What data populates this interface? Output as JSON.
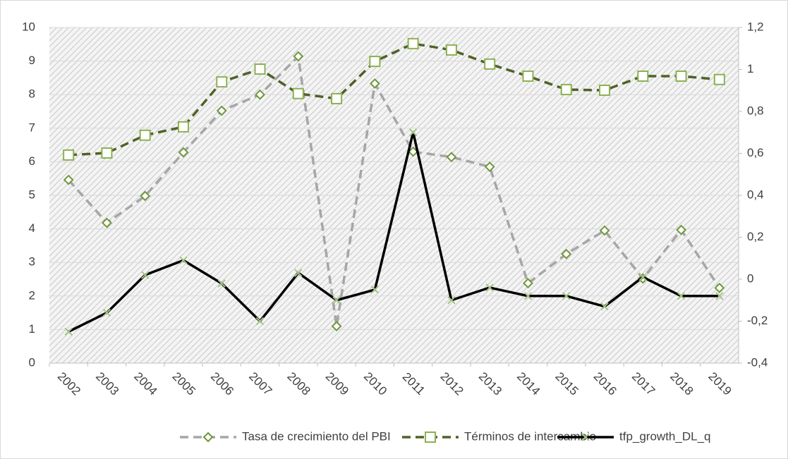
{
  "chart_data": {
    "type": "line",
    "categories": [
      "2002",
      "2003",
      "2004",
      "2005",
      "2006",
      "2007",
      "2008",
      "2009",
      "2010",
      "2011",
      "2012",
      "2013",
      "2014",
      "2015",
      "2016",
      "2017",
      "2018",
      "2019"
    ],
    "ylim": [
      0,
      10
    ],
    "yticks": [
      0,
      1,
      2,
      3,
      4,
      5,
      6,
      7,
      8,
      9,
      10
    ],
    "y2lim": [
      -0.4,
      1.2
    ],
    "y2ticks": [
      {
        "value": -0.4,
        "label": "-0,4"
      },
      {
        "value": -0.2,
        "label": "-0,2"
      },
      0,
      {
        "value": 0.2,
        "label": "0,2"
      },
      {
        "value": 0.4,
        "label": "0,4"
      },
      {
        "value": 0.6,
        "label": "0,6"
      },
      {
        "value": 0.8,
        "label": "0,8"
      },
      1,
      {
        "value": 1.2,
        "label": "1,2"
      }
    ],
    "grid": true,
    "legend": "bottom",
    "series": [
      {
        "name": "Tasa de crecimiento del PBI",
        "color": "#a6a6a6",
        "dashed": true,
        "marker": "diamond",
        "marker_color": "#70963c",
        "values": [
          5.46,
          4.18,
          4.98,
          6.28,
          7.52,
          8.0,
          9.14,
          1.1,
          8.33,
          6.3,
          6.14,
          5.85,
          2.38,
          3.25,
          3.95,
          2.52,
          3.97,
          2.24
        ]
      },
      {
        "name": "Términos de intercambio",
        "color": "#4f6228",
        "dashed": true,
        "marker": "square",
        "marker_color": "#8db152",
        "values": [
          6.2,
          6.26,
          6.79,
          7.04,
          8.38,
          8.76,
          8.03,
          7.88,
          8.99,
          9.52,
          9.33,
          8.91,
          8.55,
          8.15,
          8.13,
          8.55,
          8.55,
          8.45
        ]
      },
      {
        "name": "tfp_growth_DL_q",
        "color": "#000000",
        "dashed": false,
        "marker": "x",
        "marker_color": "#a9c28a",
        "axis": "y2",
        "values": [
          -0.25,
          -0.16,
          0.02,
          0.09,
          -0.02,
          -0.2,
          0.03,
          -0.1,
          -0.05,
          0.7,
          -0.1,
          -0.04,
          -0.08,
          -0.08,
          -0.13,
          0.01,
          -0.08,
          -0.08
        ]
      }
    ]
  }
}
